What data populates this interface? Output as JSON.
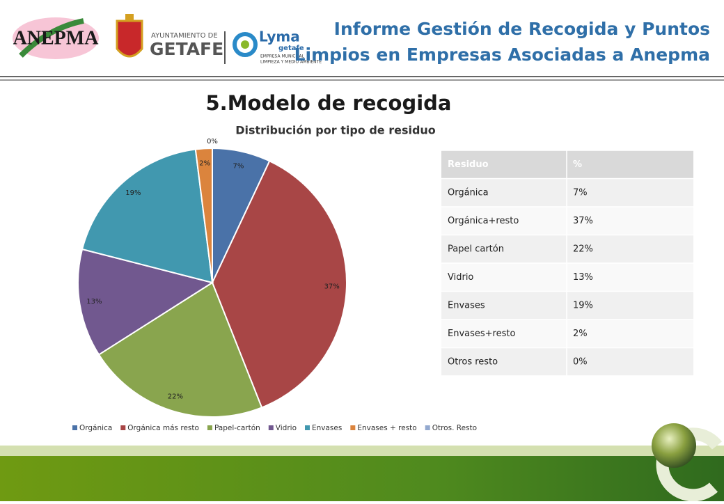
{
  "header": {
    "title_line1": "Informe Gestión de Recogida y Puntos",
    "title_line2": "Limpios en Empresas Asociadas a Anepma",
    "logo_anepma": "ANEPMA",
    "logo_ayto": "AYUNTAMIENTO DE",
    "logo_getafe": "GETAFE",
    "logo_lyma": "Lyma",
    "logo_lyma_sub": "getafe",
    "logo_lyma_line1": "EMPRESA MUNICIPAL",
    "logo_lyma_line2": "LIMPIEZA Y MEDIO AMBIENTE"
  },
  "section_title": "5.Modelo de recogida",
  "chart_data": {
    "type": "pie",
    "title": "Distribución por tipo de residuo",
    "categories": [
      "Orgánica",
      "Orgánica más resto",
      "Papel-cartón",
      "Vidrio",
      "Envases",
      "Envases + resto",
      "Otros. Resto"
    ],
    "values": [
      7,
      37,
      22,
      13,
      19,
      2,
      0
    ],
    "value_labels": [
      "7%",
      "37%",
      "22%",
      "13%",
      "19%",
      "2%",
      "0%"
    ],
    "colors": [
      "#4a72a8",
      "#a84646",
      "#89a54e",
      "#71588f",
      "#4198af",
      "#db843d",
      "#93a9cf"
    ],
    "legend": "bottom"
  },
  "table": {
    "columns": [
      "Residuo",
      "%"
    ],
    "rows": [
      [
        "Orgánica",
        "7%"
      ],
      [
        "Orgánica+resto",
        "37%"
      ],
      [
        "Papel cartón",
        "22%"
      ],
      [
        "Vidrio",
        "13%"
      ],
      [
        "Envases",
        "19%"
      ],
      [
        "Envases+resto",
        "2%"
      ],
      [
        "Otros resto",
        "0%"
      ]
    ]
  }
}
